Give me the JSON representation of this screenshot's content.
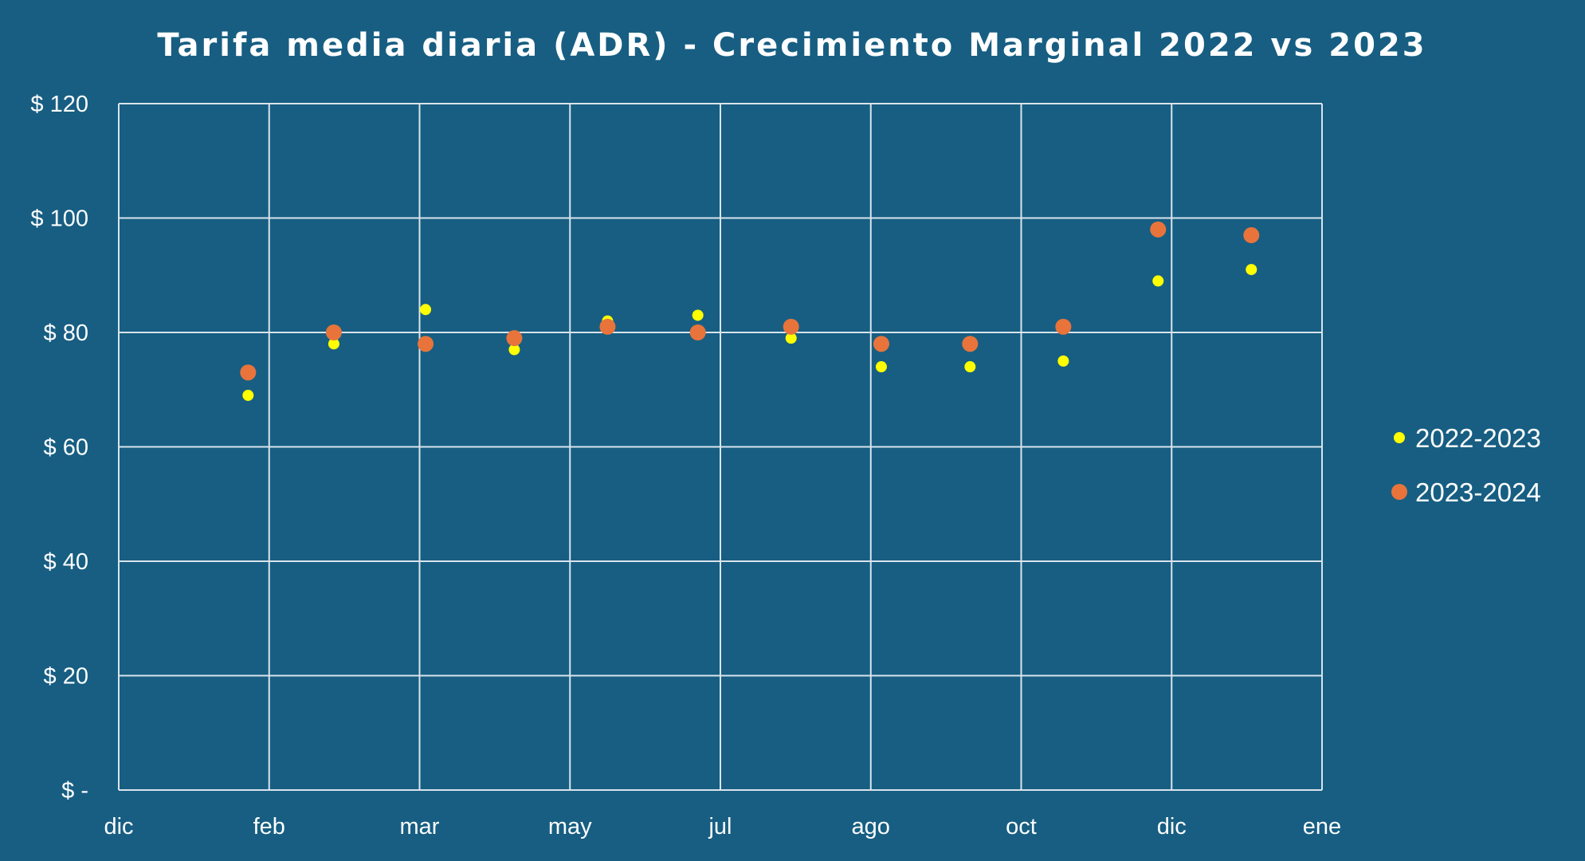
{
  "chart_data": {
    "type": "scatter",
    "title": "Tarifa media diaria (ADR)  - Crecimiento Marginal 2022 vs 2023",
    "xlabel": "",
    "ylabel": "",
    "x_ticks": [
      "dic",
      "feb",
      "mar",
      "may",
      "jul",
      "ago",
      "oct",
      "dic",
      "ene"
    ],
    "y_ticks": [
      "$ -",
      "$ 20",
      "$ 40",
      "$ 60",
      "$ 80",
      "$ 100",
      "$ 120"
    ],
    "ylim": [
      0,
      120
    ],
    "x_positions": [
      0.86,
      1.43,
      2.04,
      2.63,
      3.25,
      3.85,
      4.47,
      5.07,
      5.66,
      6.28,
      6.91,
      7.53
    ],
    "xlim": [
      0,
      8
    ],
    "grid": true,
    "legend_position": "right",
    "series": [
      {
        "name": "2022-2023",
        "color": "#ffff00",
        "marker": "small-dot",
        "values": [
          69,
          78,
          84,
          77,
          82,
          83,
          79,
          74,
          74,
          75,
          89,
          91
        ]
      },
      {
        "name": "2023-2024",
        "color": "#e8743b",
        "marker": "large-dot",
        "values": [
          73,
          80,
          78,
          79,
          81,
          80,
          81,
          78,
          78,
          81,
          98,
          97
        ]
      }
    ]
  }
}
